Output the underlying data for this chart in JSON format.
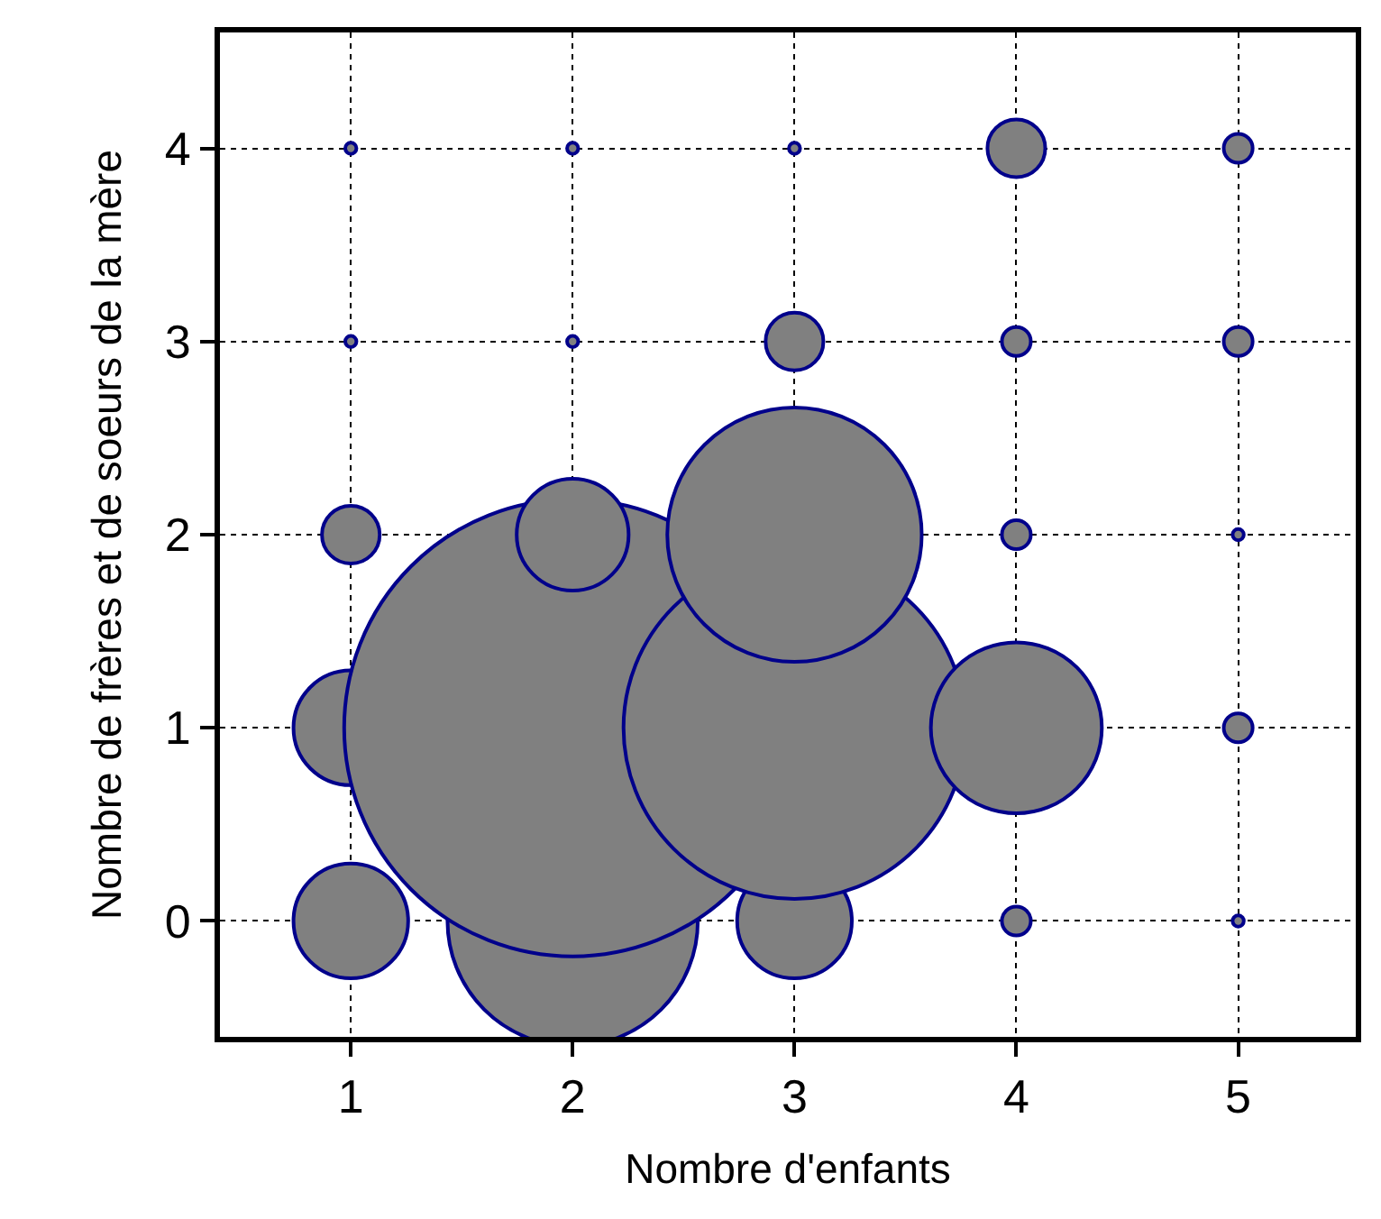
{
  "chart_data": {
    "type": "bubble",
    "xlabel": "Nombre d'enfants",
    "ylabel": "Nombre de frères et de soeurs de la mère",
    "x": [
      1,
      2,
      3,
      4,
      5,
      1,
      2,
      3,
      4,
      5,
      1,
      2,
      3,
      4,
      5,
      1,
      2,
      3,
      4,
      5,
      1,
      2,
      3,
      4,
      5
    ],
    "values": [
      0,
      0,
      0,
      0,
      0,
      1,
      1,
      1,
      1,
      1,
      2,
      2,
      2,
      2,
      2,
      3,
      3,
      3,
      3,
      3,
      4,
      4,
      4,
      4,
      4
    ],
    "sizes": [
      0.063,
      0.3,
      0.063,
      0.004,
      0.0006,
      0.063,
      1,
      0.56,
      0.14,
      0.004,
      0.016,
      0.06,
      0.31,
      0.004,
      0.0006,
      0.0006,
      0.0006,
      0.016,
      0.004,
      0.004,
      0.0006,
      0.0006,
      0.0006,
      0.016,
      0.004
    ],
    "color": "#808080",
    "xlim": [
      0.41,
      5.53
    ],
    "ylim": [
      -0.6,
      4.6
    ],
    "xticks": [
      1,
      2,
      3,
      4,
      5
    ],
    "yticks": [
      0,
      1,
      2,
      3,
      4
    ],
    "grid": true
  }
}
